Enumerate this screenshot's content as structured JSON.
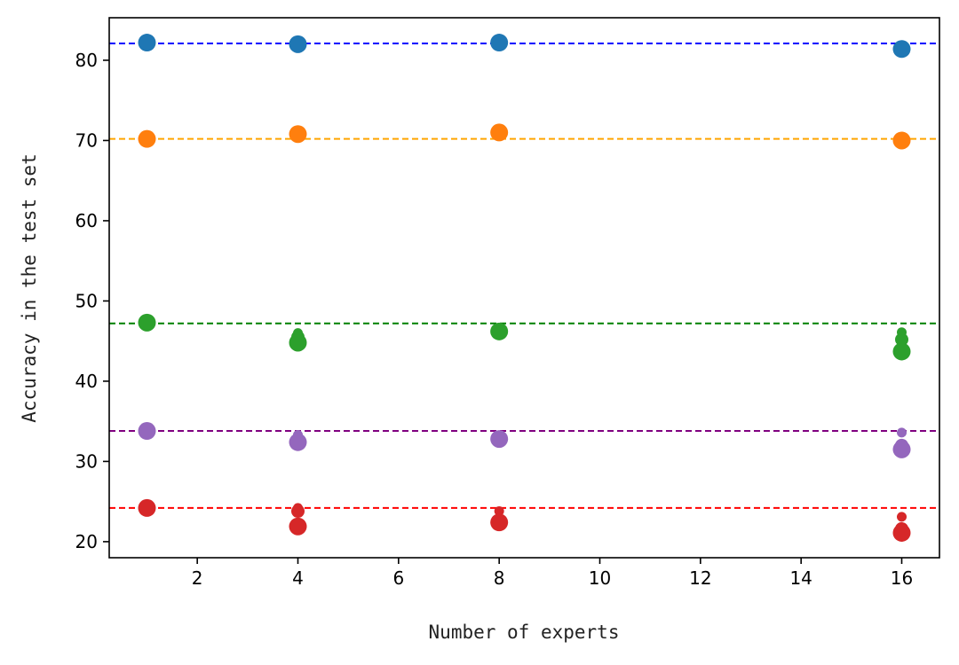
{
  "chart_data": {
    "type": "scatter",
    "title": "",
    "xlabel": "Number of experts",
    "ylabel": "Accuracy in the test set",
    "xlim": [
      0.25,
      16.75
    ],
    "ylim": [
      18,
      85.3
    ],
    "xticks": [
      2,
      4,
      6,
      8,
      10,
      12,
      14,
      16
    ],
    "yticks": [
      20,
      30,
      40,
      50,
      60,
      70,
      80
    ],
    "grid": false,
    "legend": "none",
    "reference_lines": [
      {
        "y": 82.1,
        "color": "#0000ff",
        "style": "dashed"
      },
      {
        "y": 70.2,
        "color": "#ffa500",
        "style": "dashed"
      },
      {
        "y": 47.2,
        "color": "#008000",
        "style": "dashed"
      },
      {
        "y": 33.8,
        "color": "#800080",
        "style": "dashed"
      },
      {
        "y": 24.2,
        "color": "#ff0000",
        "style": "dashed"
      }
    ],
    "series": [
      {
        "color": "#1f77b4",
        "points": [
          {
            "x": 1,
            "y": 82.2,
            "size": "large"
          },
          {
            "x": 4,
            "y": 82.0,
            "size": "large"
          },
          {
            "x": 8,
            "y": 82.2,
            "size": "large"
          },
          {
            "x": 16,
            "y": 81.4,
            "size": "large"
          }
        ]
      },
      {
        "color": "#ff7f0e",
        "points": [
          {
            "x": 1,
            "y": 70.2,
            "size": "large"
          },
          {
            "x": 4,
            "y": 70.8,
            "size": "large"
          },
          {
            "x": 8,
            "y": 71.0,
            "size": "large"
          },
          {
            "x": 16,
            "y": 70.2,
            "size": "small"
          },
          {
            "x": 16,
            "y": 70.0,
            "size": "large"
          }
        ]
      },
      {
        "color": "#2ca02c",
        "points": [
          {
            "x": 1,
            "y": 47.3,
            "size": "large"
          },
          {
            "x": 4,
            "y": 46.0,
            "size": "small"
          },
          {
            "x": 4,
            "y": 45.5,
            "size": "medium"
          },
          {
            "x": 4,
            "y": 44.8,
            "size": "large"
          },
          {
            "x": 8,
            "y": 46.4,
            "size": "small"
          },
          {
            "x": 8,
            "y": 46.2,
            "size": "large"
          },
          {
            "x": 16,
            "y": 46.1,
            "size": "small"
          },
          {
            "x": 16,
            "y": 45.2,
            "size": "medium"
          },
          {
            "x": 16,
            "y": 43.7,
            "size": "large"
          }
        ]
      },
      {
        "color": "#9467bd",
        "points": [
          {
            "x": 1,
            "y": 33.8,
            "size": "large"
          },
          {
            "x": 4,
            "y": 33.3,
            "size": "small"
          },
          {
            "x": 4,
            "y": 32.4,
            "size": "large"
          },
          {
            "x": 8,
            "y": 33.2,
            "size": "small"
          },
          {
            "x": 8,
            "y": 32.8,
            "size": "large"
          },
          {
            "x": 16,
            "y": 33.6,
            "size": "small"
          },
          {
            "x": 16,
            "y": 32.0,
            "size": "medium"
          },
          {
            "x": 16,
            "y": 31.5,
            "size": "large"
          }
        ]
      },
      {
        "color": "#d62728",
        "points": [
          {
            "x": 1,
            "y": 24.2,
            "size": "large"
          },
          {
            "x": 4,
            "y": 24.2,
            "size": "small"
          },
          {
            "x": 4,
            "y": 23.8,
            "size": "medium"
          },
          {
            "x": 4,
            "y": 21.9,
            "size": "large"
          },
          {
            "x": 8,
            "y": 23.8,
            "size": "small"
          },
          {
            "x": 8,
            "y": 22.4,
            "size": "large"
          },
          {
            "x": 16,
            "y": 23.1,
            "size": "small"
          },
          {
            "x": 16,
            "y": 21.6,
            "size": "medium"
          },
          {
            "x": 16,
            "y": 21.1,
            "size": "large"
          }
        ]
      }
    ]
  }
}
